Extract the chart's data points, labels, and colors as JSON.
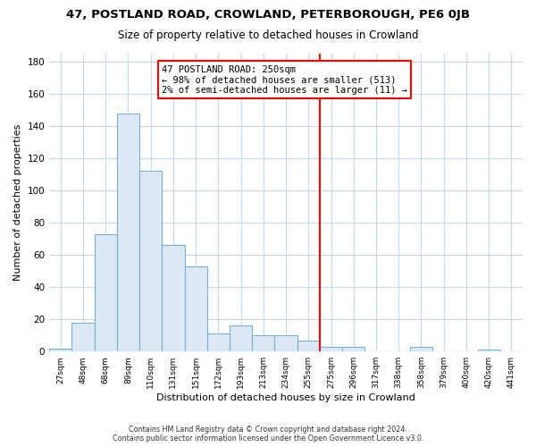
{
  "title": "47, POSTLAND ROAD, CROWLAND, PETERBOROUGH, PE6 0JB",
  "subtitle": "Size of property relative to detached houses in Crowland",
  "xlabel": "Distribution of detached houses by size in Crowland",
  "ylabel": "Number of detached properties",
  "bar_labels": [
    "27sqm",
    "48sqm",
    "68sqm",
    "89sqm",
    "110sqm",
    "131sqm",
    "151sqm",
    "172sqm",
    "193sqm",
    "213sqm",
    "234sqm",
    "255sqm",
    "275sqm",
    "296sqm",
    "317sqm",
    "338sqm",
    "358sqm",
    "379sqm",
    "400sqm",
    "420sqm",
    "441sqm"
  ],
  "bar_values": [
    2,
    18,
    73,
    148,
    112,
    66,
    53,
    11,
    16,
    10,
    10,
    7,
    3,
    3,
    0,
    0,
    3,
    0,
    0,
    1,
    0
  ],
  "bar_color": "#dce9f5",
  "bar_edge_color": "#7bafd4",
  "vline_x_index": 11,
  "vline_color": "red",
  "annotation_title": "47 POSTLAND ROAD: 250sqm",
  "annotation_line1": "← 98% of detached houses are smaller (513)",
  "annotation_line2": "2% of semi-detached houses are larger (11) →",
  "annotation_box_color": "white",
  "annotation_box_edgecolor": "red",
  "footer_line1": "Contains HM Land Registry data © Crown copyright and database right 2024.",
  "footer_line2": "Contains public sector information licensed under the Open Government Licence v3.0.",
  "ylim": [
    0,
    185
  ],
  "background_color": "#ffffff",
  "grid_color": "#c8d8e8"
}
